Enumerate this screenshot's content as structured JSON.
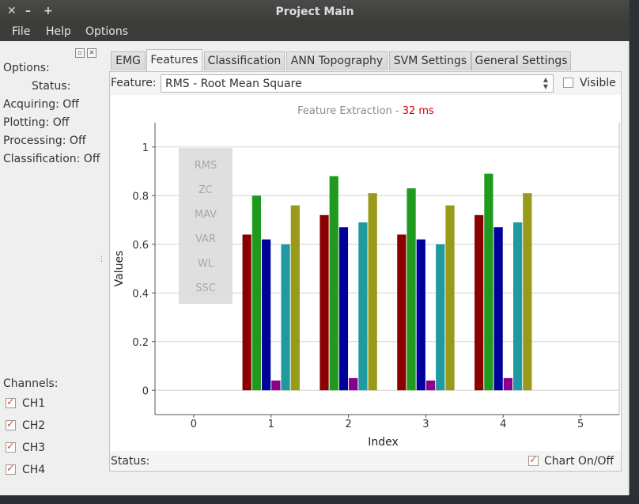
{
  "window": {
    "title": "Project Main",
    "close_glyph": "✕",
    "minimize_glyph": "–",
    "maximize_glyph": "+"
  },
  "menu": {
    "file": "File",
    "help": "Help",
    "options": "Options"
  },
  "left_panel": {
    "options_label": "Options:",
    "status_label": "Status:",
    "acquiring": "Acquiring: Off",
    "plotting": "Plotting: Off",
    "processing": "Processing: Off",
    "classification": "Classification: Off",
    "channels_label": "Channels:",
    "channels": [
      {
        "label": "CH1",
        "checked": true
      },
      {
        "label": "CH2",
        "checked": true
      },
      {
        "label": "CH3",
        "checked": true
      },
      {
        "label": "CH4",
        "checked": true
      }
    ]
  },
  "tabs": [
    "EMG",
    "Features",
    "Classification",
    "ANN Topography",
    "SVM Settings",
    "General Settings"
  ],
  "active_tab": "Features",
  "feature": {
    "label": "Feature:",
    "selected": "RMS - Root Mean Square",
    "visible_label": "Visible",
    "visible_checked": false
  },
  "chart_header": {
    "text": "Feature Extraction - ",
    "ms": "32 ms"
  },
  "status_bar": {
    "status_label": "Status:",
    "chart_toggle_label": "Chart On/Off",
    "chart_toggle_checked": true
  },
  "colors": {
    "ch1": "#8b0000",
    "ch2": "#1f9a1f",
    "ch3": "#00009b",
    "ch4": "#8a008a",
    "ch5": "#1e9aa0",
    "ch6": "#9a9a1a"
  },
  "chart_data": {
    "type": "bar",
    "xlabel": "Index",
    "ylabel": "Values",
    "xlim": [
      -0.5,
      5.5
    ],
    "ylim": [
      -0.1,
      1.1
    ],
    "x_ticks": [
      0,
      1,
      2,
      3,
      4,
      5
    ],
    "y_ticks": [
      0,
      0.2,
      0.4,
      0.6,
      0.8,
      1
    ],
    "grid": true,
    "categories": [
      1,
      2,
      3,
      4
    ],
    "series": [
      {
        "color": "#8b0000",
        "values": [
          0.64,
          0.72,
          0.64,
          0.72
        ]
      },
      {
        "color": "#1f9a1f",
        "values": [
          0.8,
          0.88,
          0.83,
          0.89
        ]
      },
      {
        "color": "#00009b",
        "values": [
          0.62,
          0.67,
          0.62,
          0.67
        ]
      },
      {
        "color": "#8a008a",
        "values": [
          0.04,
          0.05,
          0.04,
          0.05
        ]
      },
      {
        "color": "#1e9aa0",
        "values": [
          0.6,
          0.69,
          0.6,
          0.69
        ]
      },
      {
        "color": "#9a9a1a",
        "values": [
          0.76,
          0.81,
          0.76,
          0.81
        ]
      }
    ],
    "legend": {
      "placement": "top-left",
      "entries": [
        "RMS",
        "ZC",
        "MAV",
        "VAR",
        "WL",
        "SSC"
      ]
    }
  }
}
